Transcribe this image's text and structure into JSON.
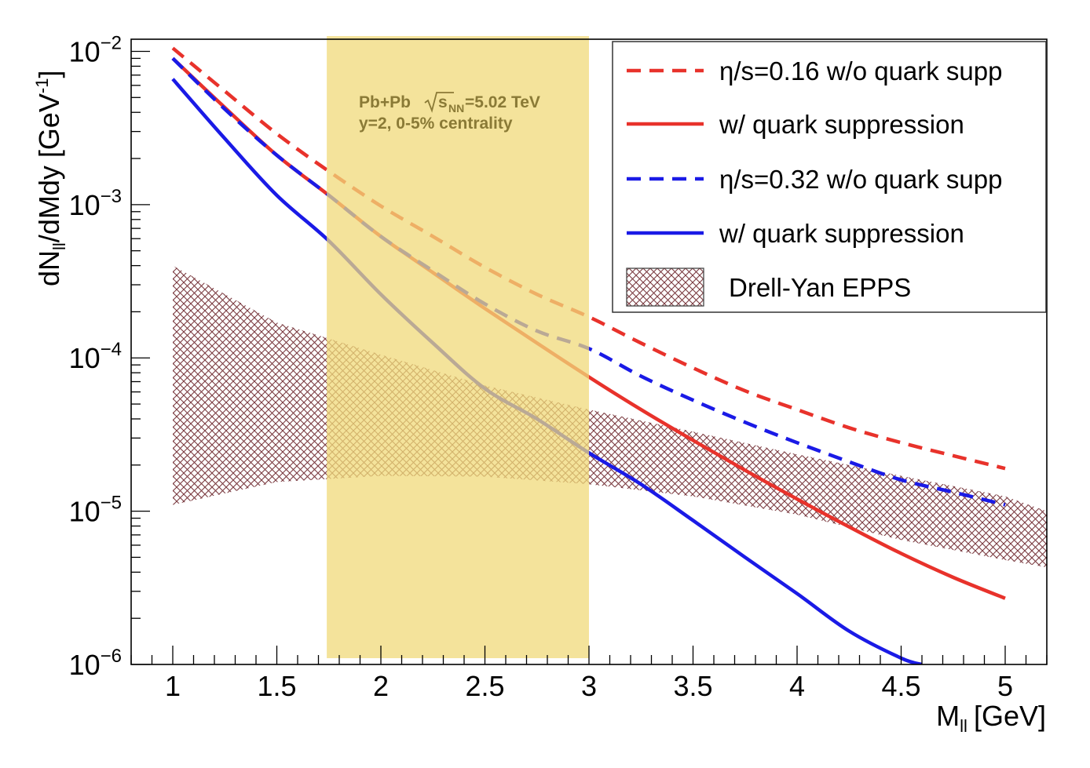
{
  "chart_data": {
    "type": "line",
    "xlabel": "M",
    "xlabel_sub": "ll",
    "xlabel_unit": "[GeV]",
    "ylabel": "dN",
    "ylabel_sub": "ll",
    "ylabel_rest": "/dMdy [GeV",
    "ylabel_sup": "-1",
    "ylabel_close": "]",
    "xlim": [
      0.8,
      5.2
    ],
    "ylim": [
      1e-06,
      0.012
    ],
    "yscale": "log",
    "x_ticks": [
      1,
      1.5,
      2,
      2.5,
      3,
      3.5,
      4,
      4.5,
      5
    ],
    "x_tick_labels": [
      "1",
      "1.5",
      "2",
      "2.5",
      "3",
      "3.5",
      "4",
      "4.5",
      "5"
    ],
    "y_ticks": [
      {
        "value": 1e-06,
        "base": "10",
        "exp": "−6"
      },
      {
        "value": 1e-05,
        "base": "10",
        "exp": "−5"
      },
      {
        "value": 0.0001,
        "base": "10",
        "exp": "−4"
      },
      {
        "value": 0.001,
        "base": "10",
        "exp": "−3"
      },
      {
        "value": 0.01,
        "base": "10",
        "exp": "−2"
      }
    ],
    "highlight_band": {
      "x_range": [
        1.74,
        3.0
      ],
      "color": "#f0da7a",
      "opacity": 0.75
    },
    "annotation": {
      "line1_a": "Pb+Pb",
      "line1_sqrt": "s",
      "line1_sub": "NN",
      "line1_b": "=5.02 TeV",
      "line2": "y=2, 0-5% centrality",
      "color": "#8a7a36"
    },
    "series": [
      {
        "name": "η/s=0.16 w/o quark supp",
        "color": "#e8322b",
        "style": "dashed",
        "x": [
          1.0,
          1.25,
          1.5,
          1.75,
          2.0,
          2.25,
          2.5,
          2.75,
          3.0,
          3.25,
          3.5,
          3.75,
          4.0,
          4.25,
          4.5,
          4.75,
          5.0
        ],
        "y": [
          0.0105,
          0.0055,
          0.0029,
          0.00165,
          0.00098,
          0.00062,
          0.00039,
          0.00026,
          0.000185,
          0.000125,
          8.6e-05,
          6.1e-05,
          4.6e-05,
          3.5e-05,
          2.8e-05,
          2.3e-05,
          1.9e-05
        ]
      },
      {
        "name": "w/ quark suppression",
        "color": "#e8322b",
        "style": "solid",
        "x": [
          1.0,
          1.25,
          1.5,
          1.75,
          2.0,
          2.25,
          2.5,
          2.75,
          3.0,
          3.25,
          3.5,
          3.75,
          4.0,
          4.25,
          4.5,
          4.75,
          5.0
        ],
        "y": [
          0.009,
          0.0043,
          0.0021,
          0.00115,
          0.00062,
          0.00036,
          0.00021,
          0.000125,
          7.5e-05,
          4.6e-05,
          2.9e-05,
          1.85e-05,
          1.2e-05,
          7.9e-06,
          5.3e-06,
          3.7e-06,
          2.7e-06
        ]
      },
      {
        "name": "η/s=0.32 w/o quark supp",
        "color": "#1a1ae6",
        "style": "dashed",
        "x": [
          1.0,
          1.25,
          1.5,
          1.75,
          2.0,
          2.25,
          2.5,
          2.75,
          3.0,
          3.25,
          3.5,
          3.75,
          4.0,
          4.25,
          4.5,
          4.75,
          5.0
        ],
        "y": [
          0.009,
          0.0042,
          0.0021,
          0.00115,
          0.00062,
          0.00037,
          0.000225,
          0.00015,
          0.000115,
          7.6e-05,
          5.3e-05,
          3.8e-05,
          2.8e-05,
          2.1e-05,
          1.6e-05,
          1.33e-05,
          1.1e-05
        ]
      },
      {
        "name": "w/ quark suppression",
        "color": "#1a1ae6",
        "style": "solid",
        "x": [
          1.0,
          1.25,
          1.5,
          1.75,
          2.0,
          2.25,
          2.5,
          2.75,
          3.0,
          3.25,
          3.5,
          3.75,
          4.0,
          4.25,
          4.5,
          4.6
        ],
        "y": [
          0.0066,
          0.0027,
          0.00115,
          0.00058,
          0.00026,
          0.000125,
          6.3e-05,
          4e-05,
          2.4e-05,
          1.5e-05,
          8.7e-06,
          5e-06,
          2.9e-06,
          1.65e-06,
          1.1e-06,
          1e-06
        ]
      }
    ],
    "band": {
      "name": "Drell-Yan EPPS",
      "color": "#7a3a40",
      "x": [
        1.0,
        1.5,
        2.0,
        2.5,
        3.0,
        3.5,
        4.0,
        4.5,
        5.0,
        5.2
      ],
      "upper": [
        0.0004,
        0.00017,
        0.000105,
        6.6e-05,
        4.6e-05,
        3.3e-05,
        2.35e-05,
        1.7e-05,
        1.25e-05,
        1e-05
      ],
      "lower": [
        1.1e-05,
        1.55e-05,
        1.7e-05,
        1.68e-05,
        1.5e-05,
        1.25e-05,
        9.5e-06,
        6.5e-06,
        4.8e-06,
        4.3e-06
      ]
    },
    "legend": {
      "position": "top-right",
      "entries": [
        {
          "label": "η/s=0.16 w/o quark supp",
          "color": "#e8322b",
          "style": "dashed"
        },
        {
          "label": "w/ quark suppression",
          "color": "#e8322b",
          "style": "solid"
        },
        {
          "label": "η/s=0.32 w/o quark supp",
          "color": "#1a1ae6",
          "style": "dashed"
        },
        {
          "label": "w/ quark suppression",
          "color": "#1a1ae6",
          "style": "solid"
        },
        {
          "label": "Drell-Yan EPPS",
          "color": "#7a3a40",
          "style": "hatch"
        }
      ]
    }
  }
}
